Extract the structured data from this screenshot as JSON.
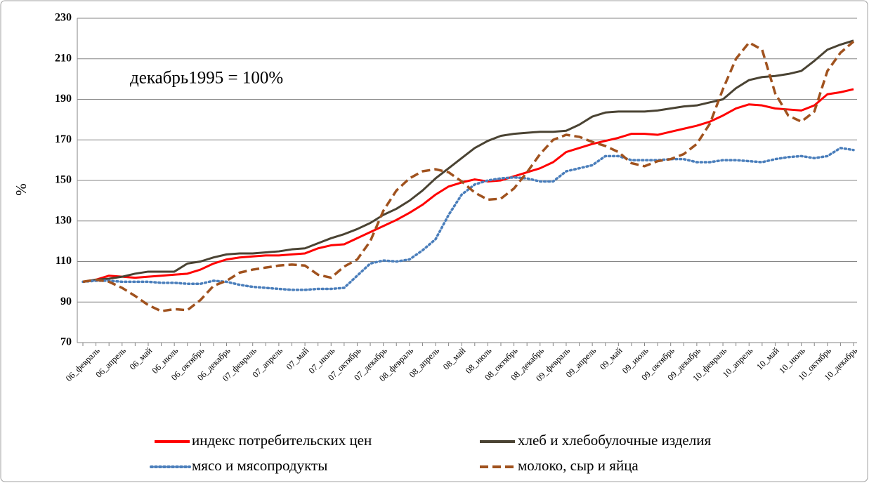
{
  "chart_data": {
    "type": "line",
    "annotation": "декабрь1995 = 100%",
    "y_label": "%",
    "categories": [
      null,
      "06_февраль",
      null,
      "06_апрель",
      null,
      "06_май",
      null,
      "06_июль",
      null,
      "06_октябрь",
      null,
      "06_декабрь",
      null,
      "07_февраль",
      null,
      "07_апрель",
      null,
      "07_май",
      null,
      "07_июль",
      null,
      "07_октябрь",
      null,
      "07_декабрь",
      null,
      "08_февраль",
      null,
      "08_апрель",
      null,
      "08_май",
      null,
      "08_июль",
      null,
      "08_октябрь",
      null,
      "08_декабрь",
      null,
      "09_февраль",
      null,
      "09_апрель",
      null,
      "09_май",
      null,
      "09_июль",
      null,
      "09_октябрь",
      null,
      "09_декабрь",
      null,
      "10_февраль",
      null,
      "10_апрель",
      null,
      "10_май",
      null,
      "10_июль",
      null,
      "10_октябрь",
      null,
      "10_декабрь"
    ],
    "series": [
      {
        "name": "индекс потребительских цен",
        "color": "#ff0000",
        "dash": "solid",
        "values": [
          100,
          101,
          103,
          102.5,
          102,
          102.5,
          103,
          103.5,
          104,
          106,
          109,
          111,
          112,
          112.5,
          113,
          113,
          113.5,
          114,
          116.5,
          118,
          118.5,
          121.5,
          124.5,
          127.5,
          130.5,
          134,
          138,
          143,
          147,
          149,
          150.5,
          149.5,
          150,
          152,
          154,
          156,
          159,
          164,
          166,
          168,
          169.5,
          171,
          173,
          173,
          172.5,
          174,
          175.5,
          177,
          179,
          182,
          185.5,
          187.5,
          187,
          185.5,
          185,
          184.5,
          187,
          192.5,
          193.5,
          195
        ]
      },
      {
        "name": "хлеб и хлебобулочные изделия",
        "color": "#4a4333",
        "dash": "solid",
        "values": [
          100,
          101,
          101.5,
          102.5,
          104,
          105,
          105,
          105,
          109,
          110,
          112,
          113.5,
          114,
          114,
          114.5,
          115,
          116,
          116.5,
          119,
          121.5,
          123.5,
          126,
          129,
          133,
          136,
          140,
          145,
          151,
          156,
          161,
          166,
          169.5,
          172,
          173,
          173.5,
          174,
          174,
          174.5,
          177.5,
          181.5,
          183.5,
          184,
          184,
          184,
          184.5,
          185.5,
          186.5,
          187,
          188.5,
          190,
          195.5,
          199.5,
          201,
          201.5,
          202.5,
          204,
          209,
          214.5,
          217,
          219
        ]
      },
      {
        "name": "мясо и мясопродукты",
        "color": "#4a7ebb",
        "dash": "dotted",
        "values": [
          100,
          100.5,
          100.5,
          100,
          100,
          100,
          99.5,
          99.5,
          99,
          99,
          100.5,
          100,
          98.5,
          97.5,
          97,
          96.5,
          96,
          96,
          96.5,
          96.5,
          97,
          103,
          109,
          110.5,
          110,
          111,
          115.5,
          121,
          133,
          143,
          148,
          150,
          151,
          151.5,
          151,
          149.5,
          149.5,
          154.5,
          156,
          157.5,
          162,
          162,
          160,
          160,
          160,
          160.5,
          160.5,
          159,
          159,
          160,
          160,
          159.5,
          159,
          160.5,
          161.5,
          162,
          161,
          162,
          166,
          165
        ]
      },
      {
        "name": "молоко, сыр и яйца",
        "color": "#a0521e",
        "dash": "dashed",
        "values": [
          100,
          101,
          100,
          97,
          93,
          88.5,
          85.5,
          86.5,
          86,
          91,
          98,
          100.5,
          104.5,
          106,
          107,
          108,
          108.5,
          108,
          103.5,
          102,
          107.5,
          111,
          120,
          135,
          145,
          151,
          154.5,
          155.5,
          154,
          149.5,
          144,
          140.5,
          141,
          146,
          154,
          163,
          170,
          172.5,
          171.5,
          169,
          167,
          164,
          158.5,
          157,
          159.5,
          160.5,
          163,
          168,
          178,
          195,
          210,
          218,
          214.5,
          193,
          182,
          179,
          184,
          204,
          213,
          218.5
        ]
      }
    ],
    "ylim": [
      70,
      230
    ],
    "yticks": [
      70,
      90,
      110,
      130,
      150,
      170,
      190,
      210,
      230
    ],
    "grid": true
  }
}
